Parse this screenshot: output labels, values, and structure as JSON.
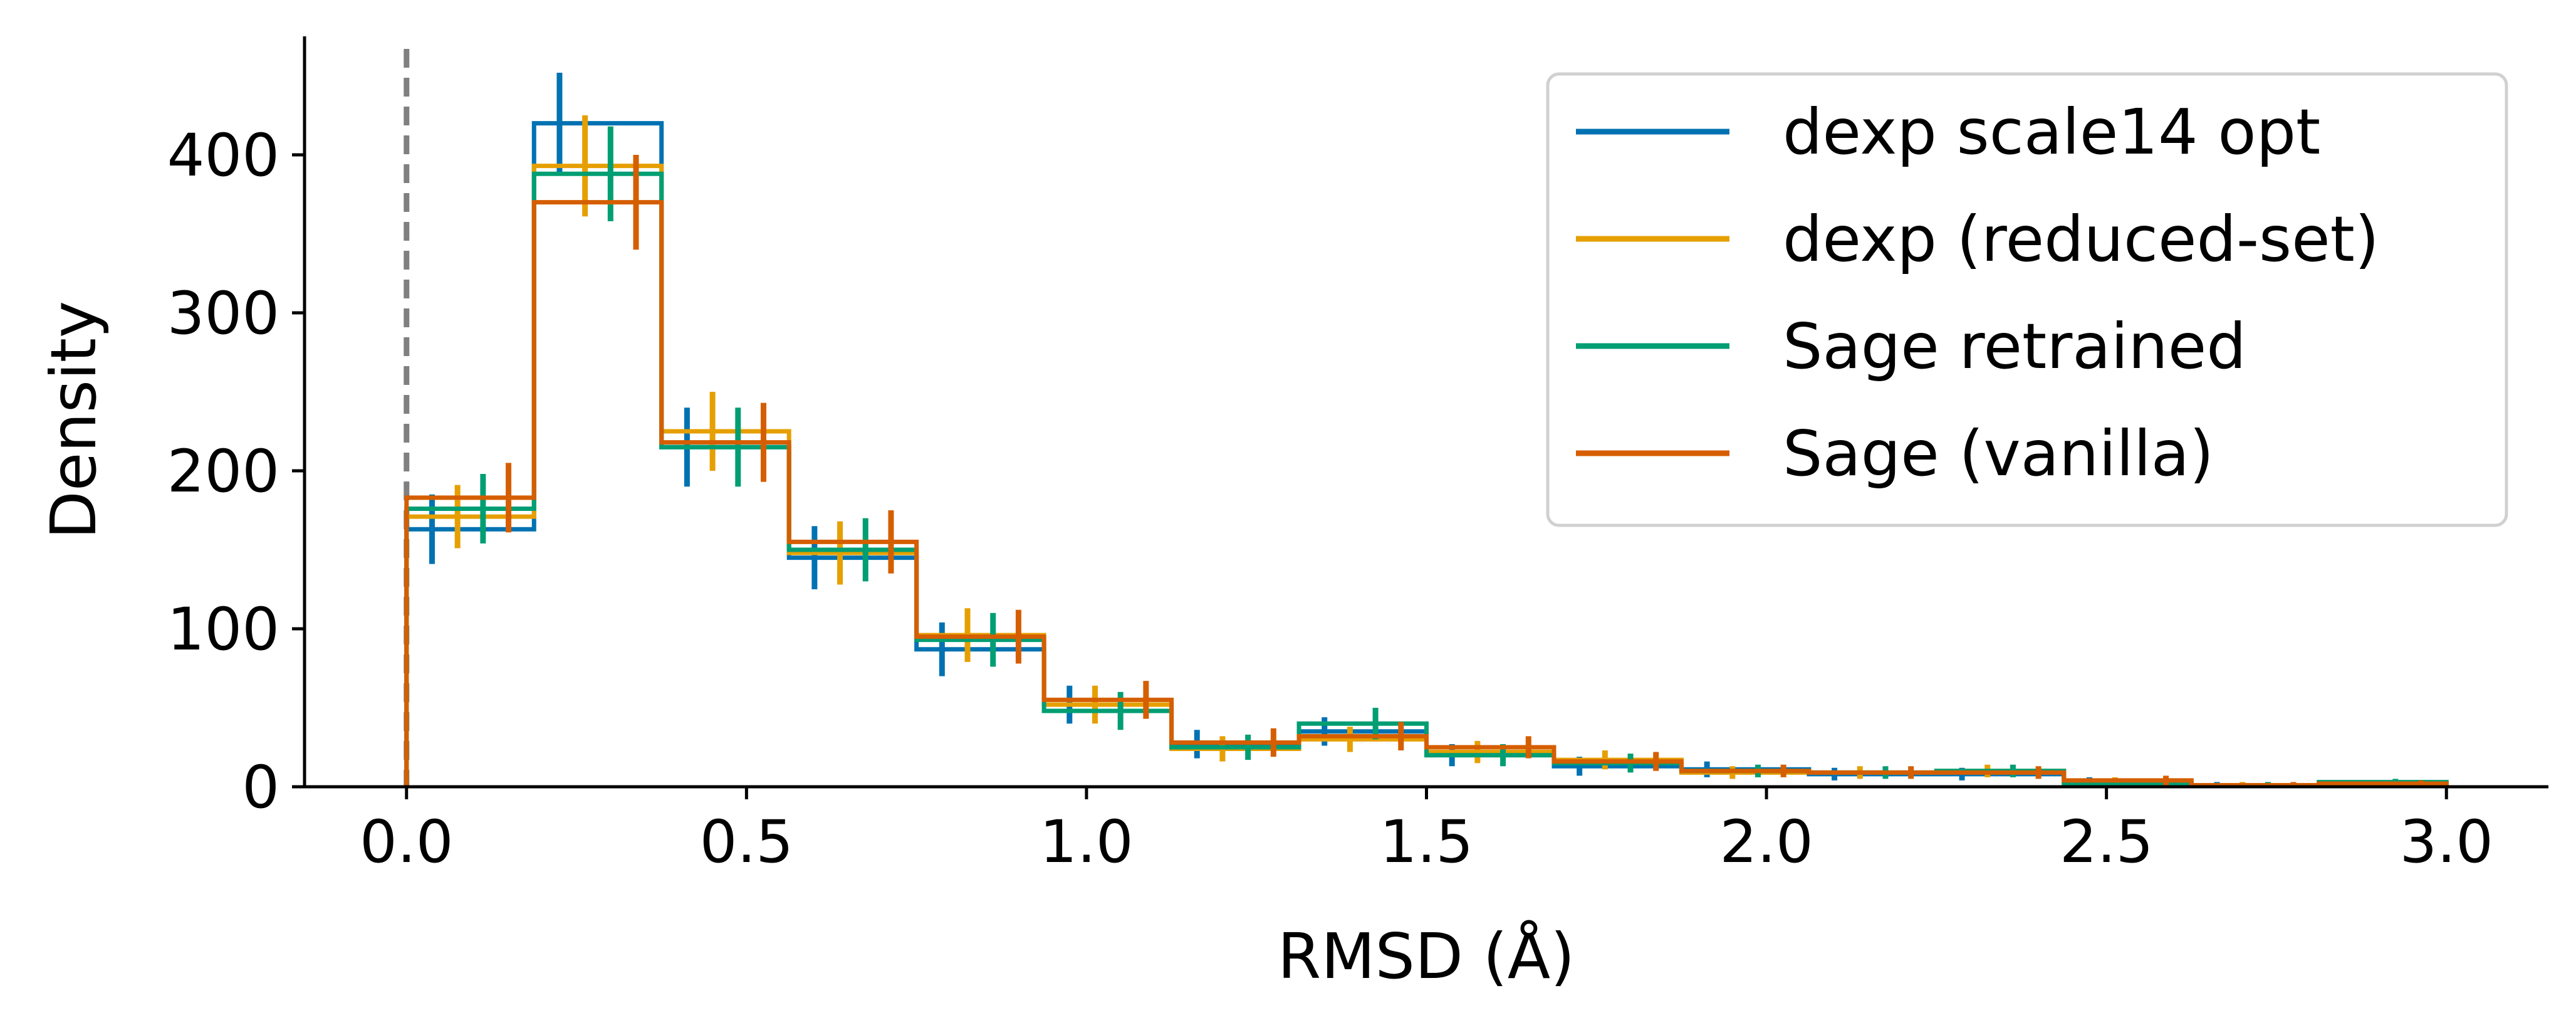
{
  "chart_data": {
    "type": "step-histogram",
    "title": "",
    "xlabel": "RMSD (Å)",
    "ylabel": "Density",
    "xlim": [
      -0.15,
      3.15
    ],
    "ylim": [
      0,
      475
    ],
    "xticks": [
      "0.0",
      "0.5",
      "1.0",
      "1.5",
      "2.0",
      "2.5",
      "3.0"
    ],
    "yticks": [
      "0",
      "100",
      "200",
      "300",
      "400"
    ],
    "reference_line": {
      "x": 0,
      "style": "dashed",
      "color": "#808080"
    },
    "legend_position": "top-right",
    "bin_edges": [
      0.0,
      0.1875,
      0.375,
      0.5625,
      0.75,
      0.9375,
      1.125,
      1.3125,
      1.5,
      1.6875,
      1.875,
      2.0625,
      2.25,
      2.4375,
      2.625,
      2.8125,
      3.0
    ],
    "series": [
      {
        "name": "dexp scale14 opt",
        "color": "#0072b2",
        "values": [
          163,
          420,
          215,
          145,
          87,
          52,
          27,
          35,
          20,
          13,
          11,
          8,
          8,
          3,
          1,
          2
        ],
        "errors": [
          22,
          32,
          25,
          20,
          17,
          12,
          9,
          9,
          7,
          6,
          5,
          4,
          4,
          3,
          2,
          2
        ]
      },
      {
        "name": "dexp (reduced-set)",
        "color": "#e69f00",
        "values": [
          171,
          393,
          225,
          148,
          96,
          52,
          24,
          30,
          22,
          17,
          9,
          9,
          10,
          3,
          1,
          2
        ],
        "errors": [
          20,
          32,
          25,
          20,
          17,
          12,
          8,
          8,
          7,
          6,
          4,
          4,
          4,
          3,
          2,
          2
        ]
      },
      {
        "name": "Sage retrained",
        "color": "#009e73",
        "values": [
          176,
          388,
          215,
          150,
          93,
          48,
          25,
          40,
          20,
          15,
          10,
          9,
          10,
          2,
          1,
          3
        ],
        "errors": [
          22,
          30,
          25,
          20,
          17,
          12,
          8,
          10,
          7,
          6,
          4,
          4,
          4,
          3,
          2,
          2
        ]
      },
      {
        "name": "Sage (vanilla)",
        "color": "#d55e00",
        "values": [
          183,
          370,
          218,
          155,
          95,
          55,
          28,
          32,
          25,
          16,
          10,
          9,
          9,
          4,
          1,
          2
        ],
        "errors": [
          22,
          30,
          25,
          20,
          17,
          12,
          9,
          9,
          7,
          6,
          4,
          4,
          4,
          3,
          2,
          2
        ]
      }
    ]
  }
}
